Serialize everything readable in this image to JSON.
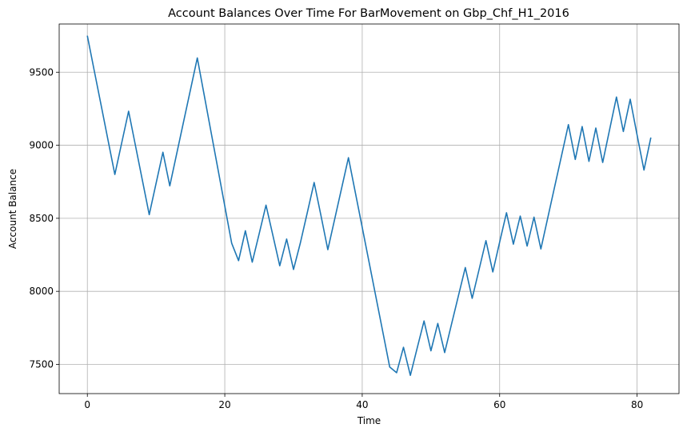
{
  "chart_data": {
    "type": "line",
    "title": "Account Balances Over Time For BarMovement on Gbp_Chf_H1_2016",
    "xlabel": "Time",
    "ylabel": "Account Balance",
    "xlim": [
      -4.1,
      86.1
    ],
    "ylim": [
      7300,
      9830
    ],
    "xticks": [
      0,
      20,
      40,
      60,
      80
    ],
    "yticks": [
      7500,
      8000,
      8500,
      9000,
      9500
    ],
    "grid": true,
    "series": [
      {
        "color": "#1f77b4",
        "x": [
          0,
          1,
          2,
          3,
          4,
          5,
          6,
          7,
          8,
          9,
          10,
          11,
          12,
          13,
          14,
          15,
          16,
          17,
          18,
          19,
          20,
          21,
          22,
          23,
          24,
          25,
          26,
          27,
          28,
          29,
          30,
          31,
          32,
          33,
          34,
          35,
          36,
          37,
          38,
          39,
          40,
          41,
          42,
          43,
          44,
          45,
          46,
          47,
          48,
          49,
          50,
          51,
          52,
          53,
          54,
          55,
          56,
          57,
          58,
          59,
          60,
          61,
          62,
          63,
          64,
          65,
          66,
          67,
          68,
          69,
          70,
          71,
          72,
          73,
          74,
          75,
          76,
          77,
          78,
          79,
          80,
          81,
          82
        ],
        "y": [
          9750,
          9512,
          9275,
          9037,
          8800,
          9017,
          9233,
          8997,
          8761,
          8525,
          8738,
          8952,
          8722,
          8941,
          9160,
          9379,
          9598,
          9344,
          9090,
          8837,
          8583,
          8329,
          8210,
          8415,
          8200,
          8393,
          8590,
          8383,
          8175,
          8358,
          8150,
          8332,
          8538,
          8745,
          8516,
          8285,
          8495,
          8705,
          8915,
          8676,
          8438,
          8199,
          7960,
          7721,
          7482,
          7443,
          7617,
          7425,
          7611,
          7797,
          7593,
          7780,
          7581,
          7776,
          7970,
          8163,
          7952,
          8149,
          8347,
          8133,
          8336,
          8538,
          8323,
          8515,
          8310,
          8508,
          8290,
          8503,
          8716,
          8928,
          9141,
          8903,
          9128,
          8890,
          9118,
          8882,
          9106,
          9330,
          9094,
          9315,
          9070,
          8830,
          9053
        ]
      }
    ]
  }
}
